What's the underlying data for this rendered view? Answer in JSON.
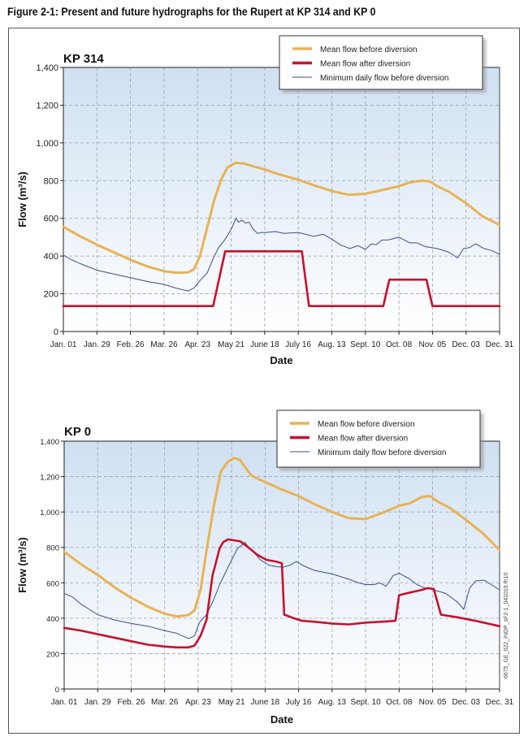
{
  "figure_title": "Figure 2-1: Present and future hydrographs for the Rupert at KP 314 and KP 0",
  "watermark": "6675_GE_022_INDP_sF2-1_041019.fh10",
  "colors": {
    "mean_before": "#e8b354",
    "mean_after": "#c8102e",
    "min_daily": "#3a4f8a",
    "grid": "#9aa3ad",
    "bg_top": "#cfe0f2",
    "bg_bottom": "#ffffff"
  },
  "chart_data": [
    {
      "type": "line",
      "title": "KP 314",
      "xlabel": "Date",
      "ylabel": "Flow (m³/s)",
      "ylim": [
        0,
        1400
      ],
      "yticks": [
        0,
        200,
        400,
        600,
        800,
        1000,
        1200,
        1400
      ],
      "ytick_labels": [
        "0",
        "200",
        "400",
        "600",
        "800",
        "1,000",
        "1,200",
        "1,400"
      ],
      "xlim": [
        1,
        365
      ],
      "xticks": [
        1,
        29,
        57,
        85,
        113,
        141,
        169,
        197,
        225,
        253,
        281,
        309,
        337,
        365
      ],
      "xtick_labels": [
        "Jan. 01",
        "Jan. 29",
        "Feb. 26",
        "Mar. 26",
        "Apr. 23",
        "May 21",
        "June 18",
        "July 16",
        "Aug. 13",
        "Sept. 10",
        "Oct. 08",
        "Nov. 05",
        "Dec. 03",
        "Dec. 31"
      ],
      "grid": true,
      "legend_position": "top-right",
      "series": [
        {
          "name": "Mean flow before diversion",
          "key": "mean_before",
          "x": [
            1,
            15,
            29,
            43,
            57,
            71,
            85,
            95,
            105,
            110,
            115,
            121,
            127,
            133,
            138,
            145,
            152,
            160,
            169,
            180,
            197,
            210,
            225,
            239,
            253,
            267,
            281,
            290,
            300,
            307,
            313,
            323,
            337,
            351,
            365
          ],
          "y": [
            555,
            505,
            460,
            420,
            380,
            345,
            320,
            312,
            313,
            330,
            400,
            550,
            700,
            810,
            870,
            895,
            890,
            875,
            860,
            835,
            805,
            775,
            745,
            725,
            730,
            750,
            770,
            790,
            800,
            795,
            770,
            740,
            680,
            610,
            565
          ]
        },
        {
          "name": "Mean flow after diversion",
          "key": "mean_after",
          "x": [
            1,
            126,
            136,
            195,
            200,
            206,
            268,
            273,
            304,
            309,
            365
          ],
          "y": [
            135,
            135,
            425,
            425,
            425,
            135,
            135,
            275,
            275,
            135,
            135
          ]
        },
        {
          "name": "Minimum daily flow before diversion",
          "key": "min_daily",
          "x": [
            1,
            8,
            15,
            29,
            43,
            57,
            71,
            85,
            95,
            105,
            110,
            115,
            121,
            127,
            131,
            135,
            139,
            142,
            145,
            147,
            150,
            153,
            156,
            159,
            163,
            166,
            170,
            178,
            185,
            197,
            210,
            218,
            225,
            232,
            240,
            247,
            253,
            258,
            262,
            267,
            272,
            281,
            290,
            296,
            303,
            313,
            323,
            330,
            335,
            340,
            345,
            352,
            358,
            365
          ],
          "y": [
            405,
            380,
            360,
            325,
            305,
            285,
            265,
            250,
            230,
            215,
            230,
            270,
            310,
            400,
            450,
            480,
            520,
            555,
            600,
            580,
            590,
            575,
            580,
            545,
            520,
            525,
            525,
            530,
            520,
            525,
            505,
            515,
            490,
            460,
            440,
            455,
            435,
            465,
            460,
            485,
            485,
            500,
            470,
            470,
            450,
            440,
            420,
            390,
            440,
            445,
            465,
            440,
            430,
            410
          ]
        }
      ]
    },
    {
      "type": "line",
      "title": "KP 0",
      "xlabel": "Date",
      "ylabel": "Flow (m³/s)",
      "ylim": [
        0,
        1400
      ],
      "yticks": [
        0,
        200,
        400,
        600,
        800,
        1000,
        1200,
        1400
      ],
      "ytick_labels": [
        "0",
        "200",
        "400",
        "600",
        "800",
        "1,000",
        "1,200",
        "1,400"
      ],
      "xlim": [
        1,
        365
      ],
      "xticks": [
        1,
        29,
        57,
        85,
        113,
        141,
        169,
        197,
        225,
        253,
        281,
        309,
        337,
        365
      ],
      "xtick_labels": [
        "Jan. 01",
        "Jan. 29",
        "Feb. 26",
        "Mar. 26",
        "Apr. 23",
        "May 21",
        "June 18",
        "July 16",
        "Aug. 13",
        "Sept. 10",
        "Oct. 08",
        "Nov. 05",
        "Dec. 03",
        "Dec. 31"
      ],
      "grid": true,
      "legend_position": "top-right",
      "series": [
        {
          "name": "Mean flow before diversion",
          "key": "mean_before",
          "x": [
            1,
            15,
            29,
            43,
            57,
            71,
            85,
            95,
            105,
            110,
            115,
            120,
            126,
            132,
            138,
            143,
            148,
            152,
            157,
            162,
            169,
            180,
            197,
            210,
            225,
            239,
            253,
            267,
            281,
            290,
            300,
            307,
            313,
            323,
            337,
            351,
            365
          ],
          "y": [
            775,
            705,
            645,
            575,
            515,
            465,
            425,
            410,
            418,
            445,
            560,
            780,
            1030,
            1230,
            1285,
            1305,
            1295,
            1255,
            1210,
            1190,
            1170,
            1135,
            1090,
            1045,
            1000,
            965,
            960,
            995,
            1035,
            1050,
            1085,
            1090,
            1060,
            1025,
            955,
            880,
            785
          ]
        },
        {
          "name": "Mean flow after diversion",
          "key": "mean_after",
          "x": [
            1,
            15,
            29,
            43,
            57,
            71,
            85,
            95,
            105,
            110,
            115,
            120,
            125,
            131,
            134,
            138,
            143,
            148,
            155,
            162,
            170,
            178,
            183,
            185,
            193,
            200,
            210,
            225,
            239,
            253,
            267,
            278,
            281,
            290,
            300,
            305,
            310,
            316,
            330,
            345,
            365
          ],
          "y": [
            345,
            330,
            310,
            290,
            270,
            250,
            240,
            235,
            235,
            245,
            300,
            390,
            640,
            795,
            830,
            845,
            840,
            835,
            800,
            760,
            730,
            720,
            710,
            420,
            400,
            385,
            380,
            370,
            365,
            375,
            380,
            385,
            530,
            545,
            560,
            570,
            565,
            420,
            405,
            385,
            355
          ]
        },
        {
          "name": "Minimum daily flow before diversion",
          "key": "min_daily",
          "x": [
            1,
            8,
            15,
            29,
            43,
            57,
            71,
            85,
            95,
            105,
            110,
            114,
            120,
            126,
            131,
            136,
            141,
            146,
            149,
            152,
            155,
            160,
            165,
            172,
            180,
            185,
            190,
            195,
            200,
            210,
            225,
            239,
            247,
            253,
            260,
            265,
            270,
            276,
            281,
            290,
            296,
            303,
            310,
            320,
            330,
            335,
            340,
            345,
            352,
            358,
            365
          ],
          "y": [
            540,
            520,
            480,
            420,
            390,
            370,
            355,
            330,
            315,
            285,
            300,
            375,
            420,
            505,
            590,
            660,
            730,
            795,
            810,
            830,
            800,
            770,
            730,
            700,
            690,
            690,
            700,
            720,
            700,
            670,
            650,
            620,
            600,
            590,
            590,
            600,
            580,
            640,
            655,
            620,
            590,
            570,
            560,
            540,
            490,
            450,
            570,
            610,
            615,
            590,
            560
          ]
        }
      ]
    }
  ]
}
